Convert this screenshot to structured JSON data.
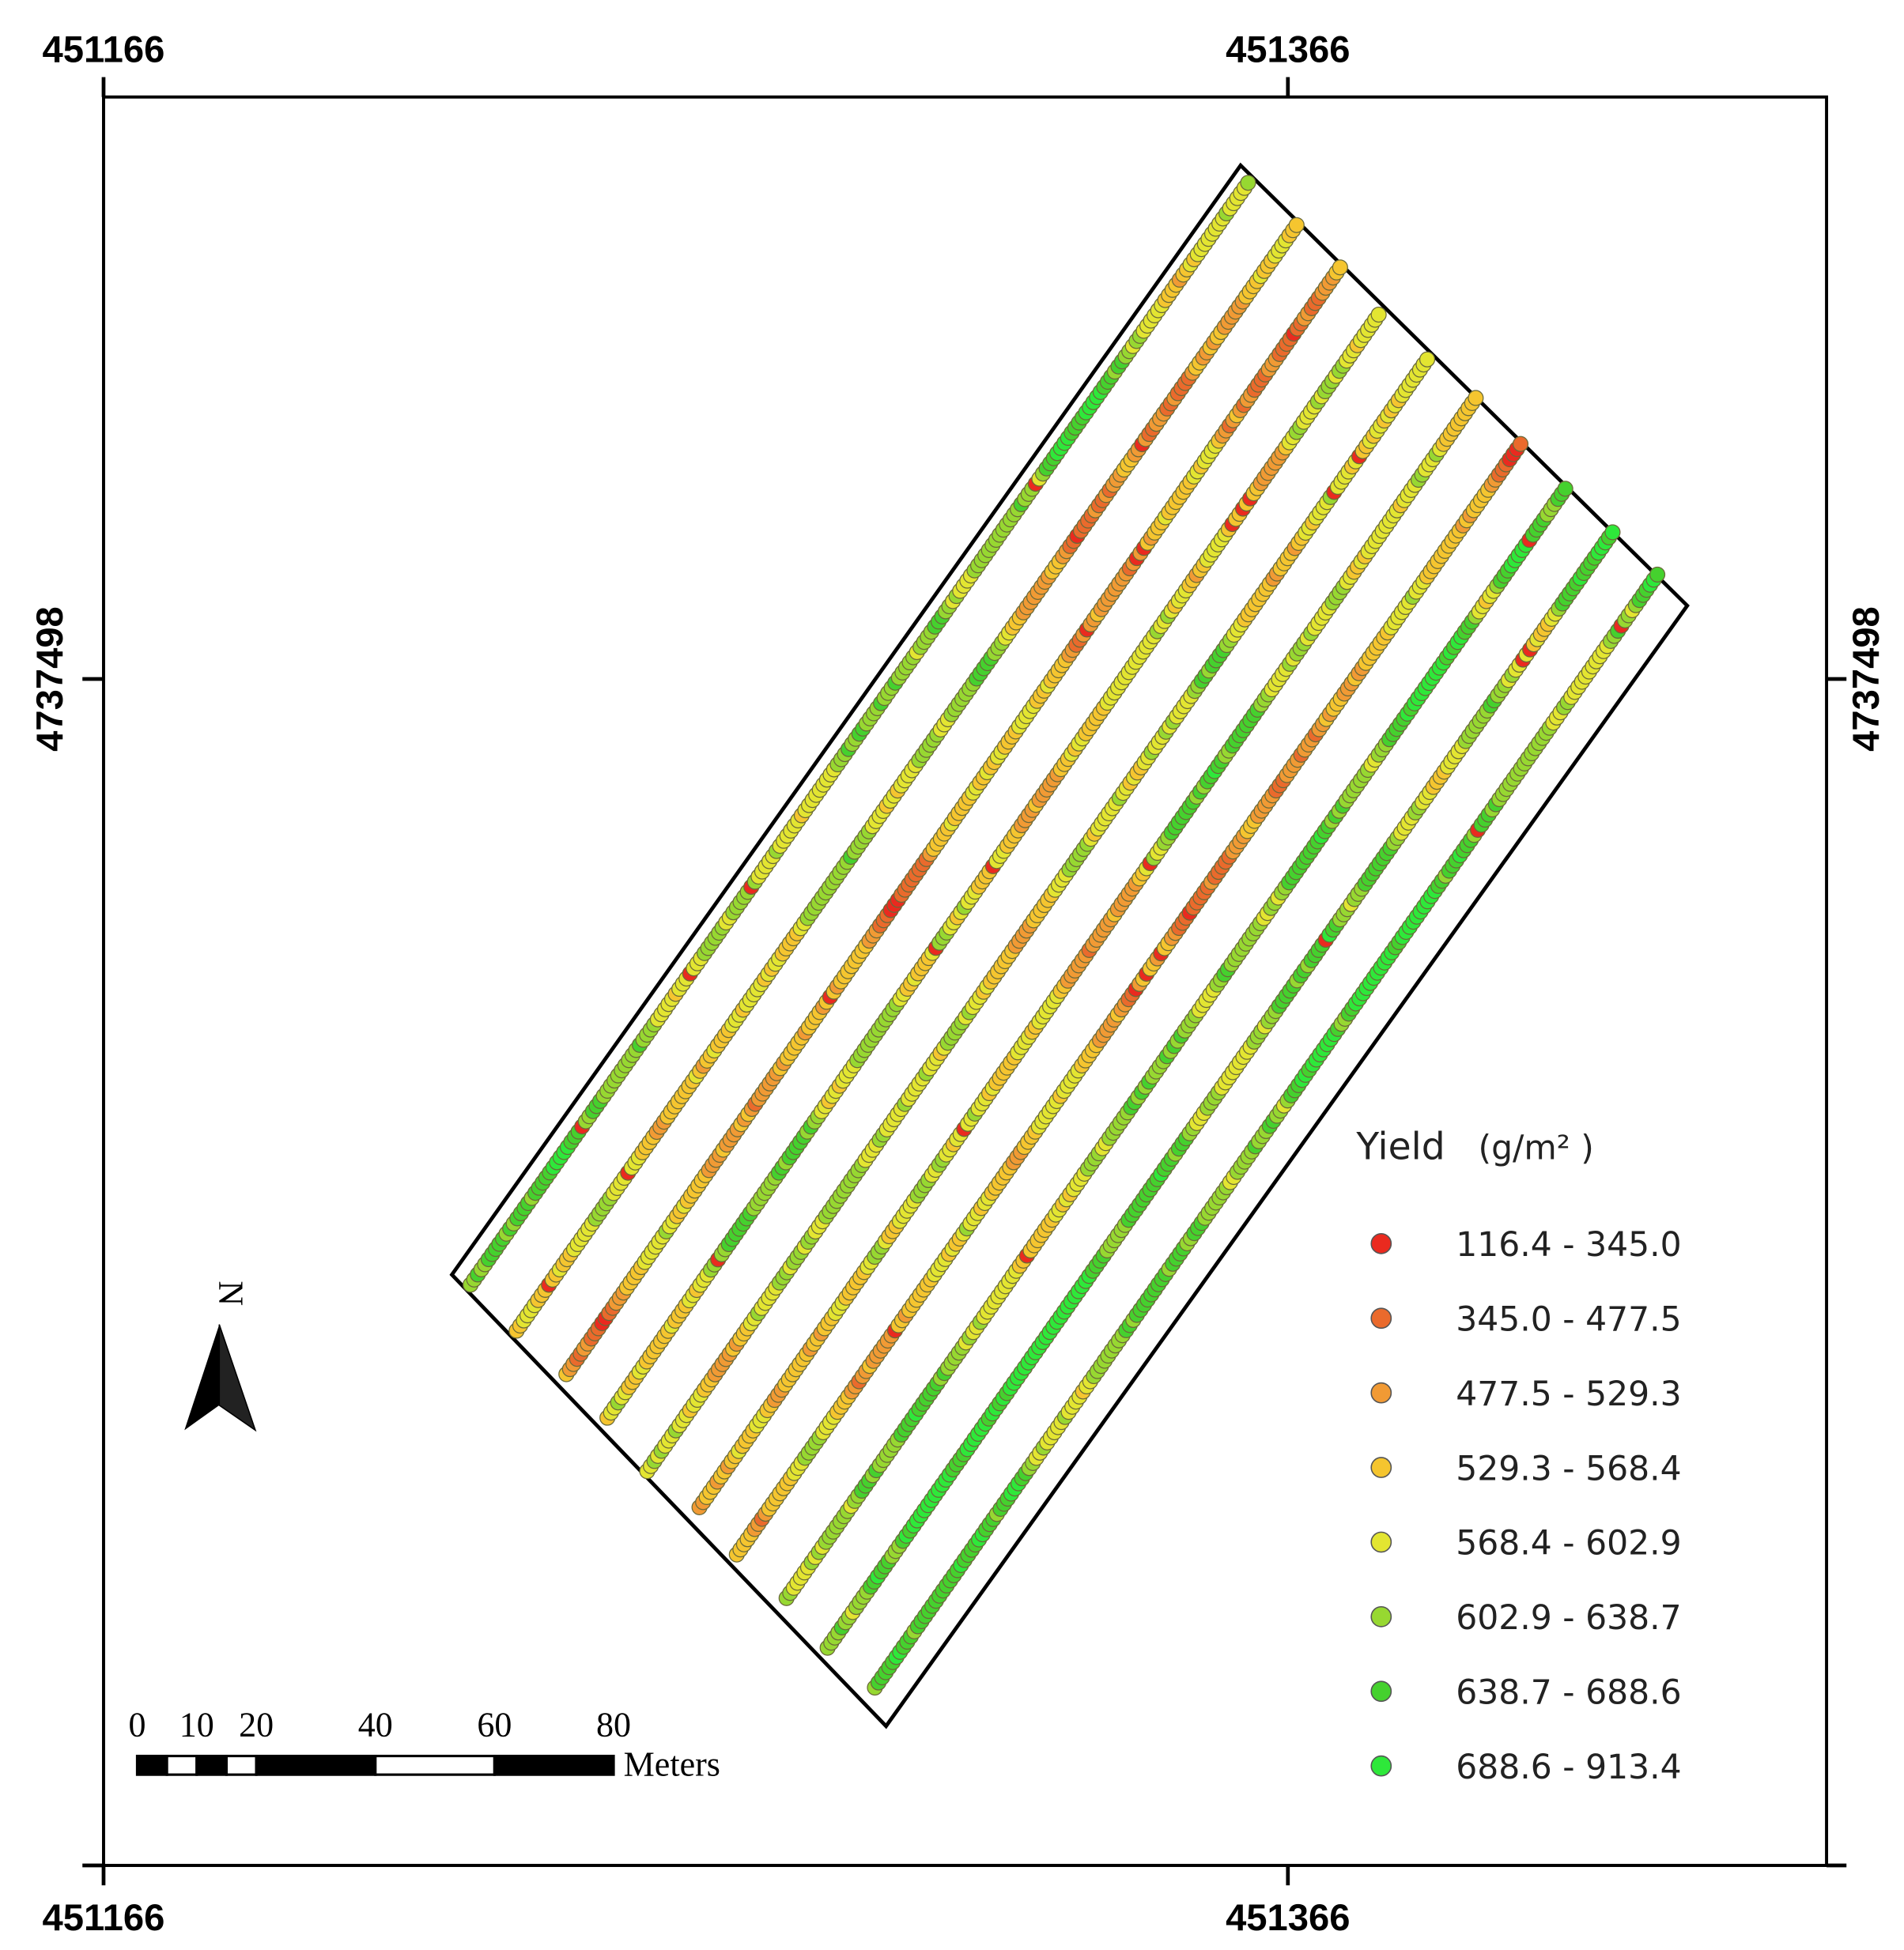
{
  "map": {
    "coordinates": {
      "top": [
        "451166",
        "451366"
      ],
      "bottom": [
        "451166",
        "451366"
      ],
      "left": [
        "4737498"
      ],
      "right": [
        "4737498"
      ]
    },
    "legend": {
      "title": "Yield",
      "unit": "(g/m² )",
      "items": [
        {
          "label": "116.4 - 345.0",
          "color": "#ea2a1f"
        },
        {
          "label": "345.0 - 477.5",
          "color": "#ea6a2c"
        },
        {
          "label": "477.5 - 529.3",
          "color": "#f19a34"
        },
        {
          "label": "529.3 - 568.4",
          "color": "#f5c52f"
        },
        {
          "label": "568.4 - 602.9",
          "color": "#e3e531"
        },
        {
          "label": "602.9 - 638.7",
          "color": "#97d831"
        },
        {
          "label": "638.7 - 688.6",
          "color": "#45d12e"
        },
        {
          "label": "688.6 - 913.4",
          "color": "#2ee83a"
        }
      ]
    },
    "north": "N",
    "scale_bar": {
      "ticks": [
        0,
        10,
        20,
        40,
        60,
        80
      ],
      "unit": "Meters"
    }
  }
}
